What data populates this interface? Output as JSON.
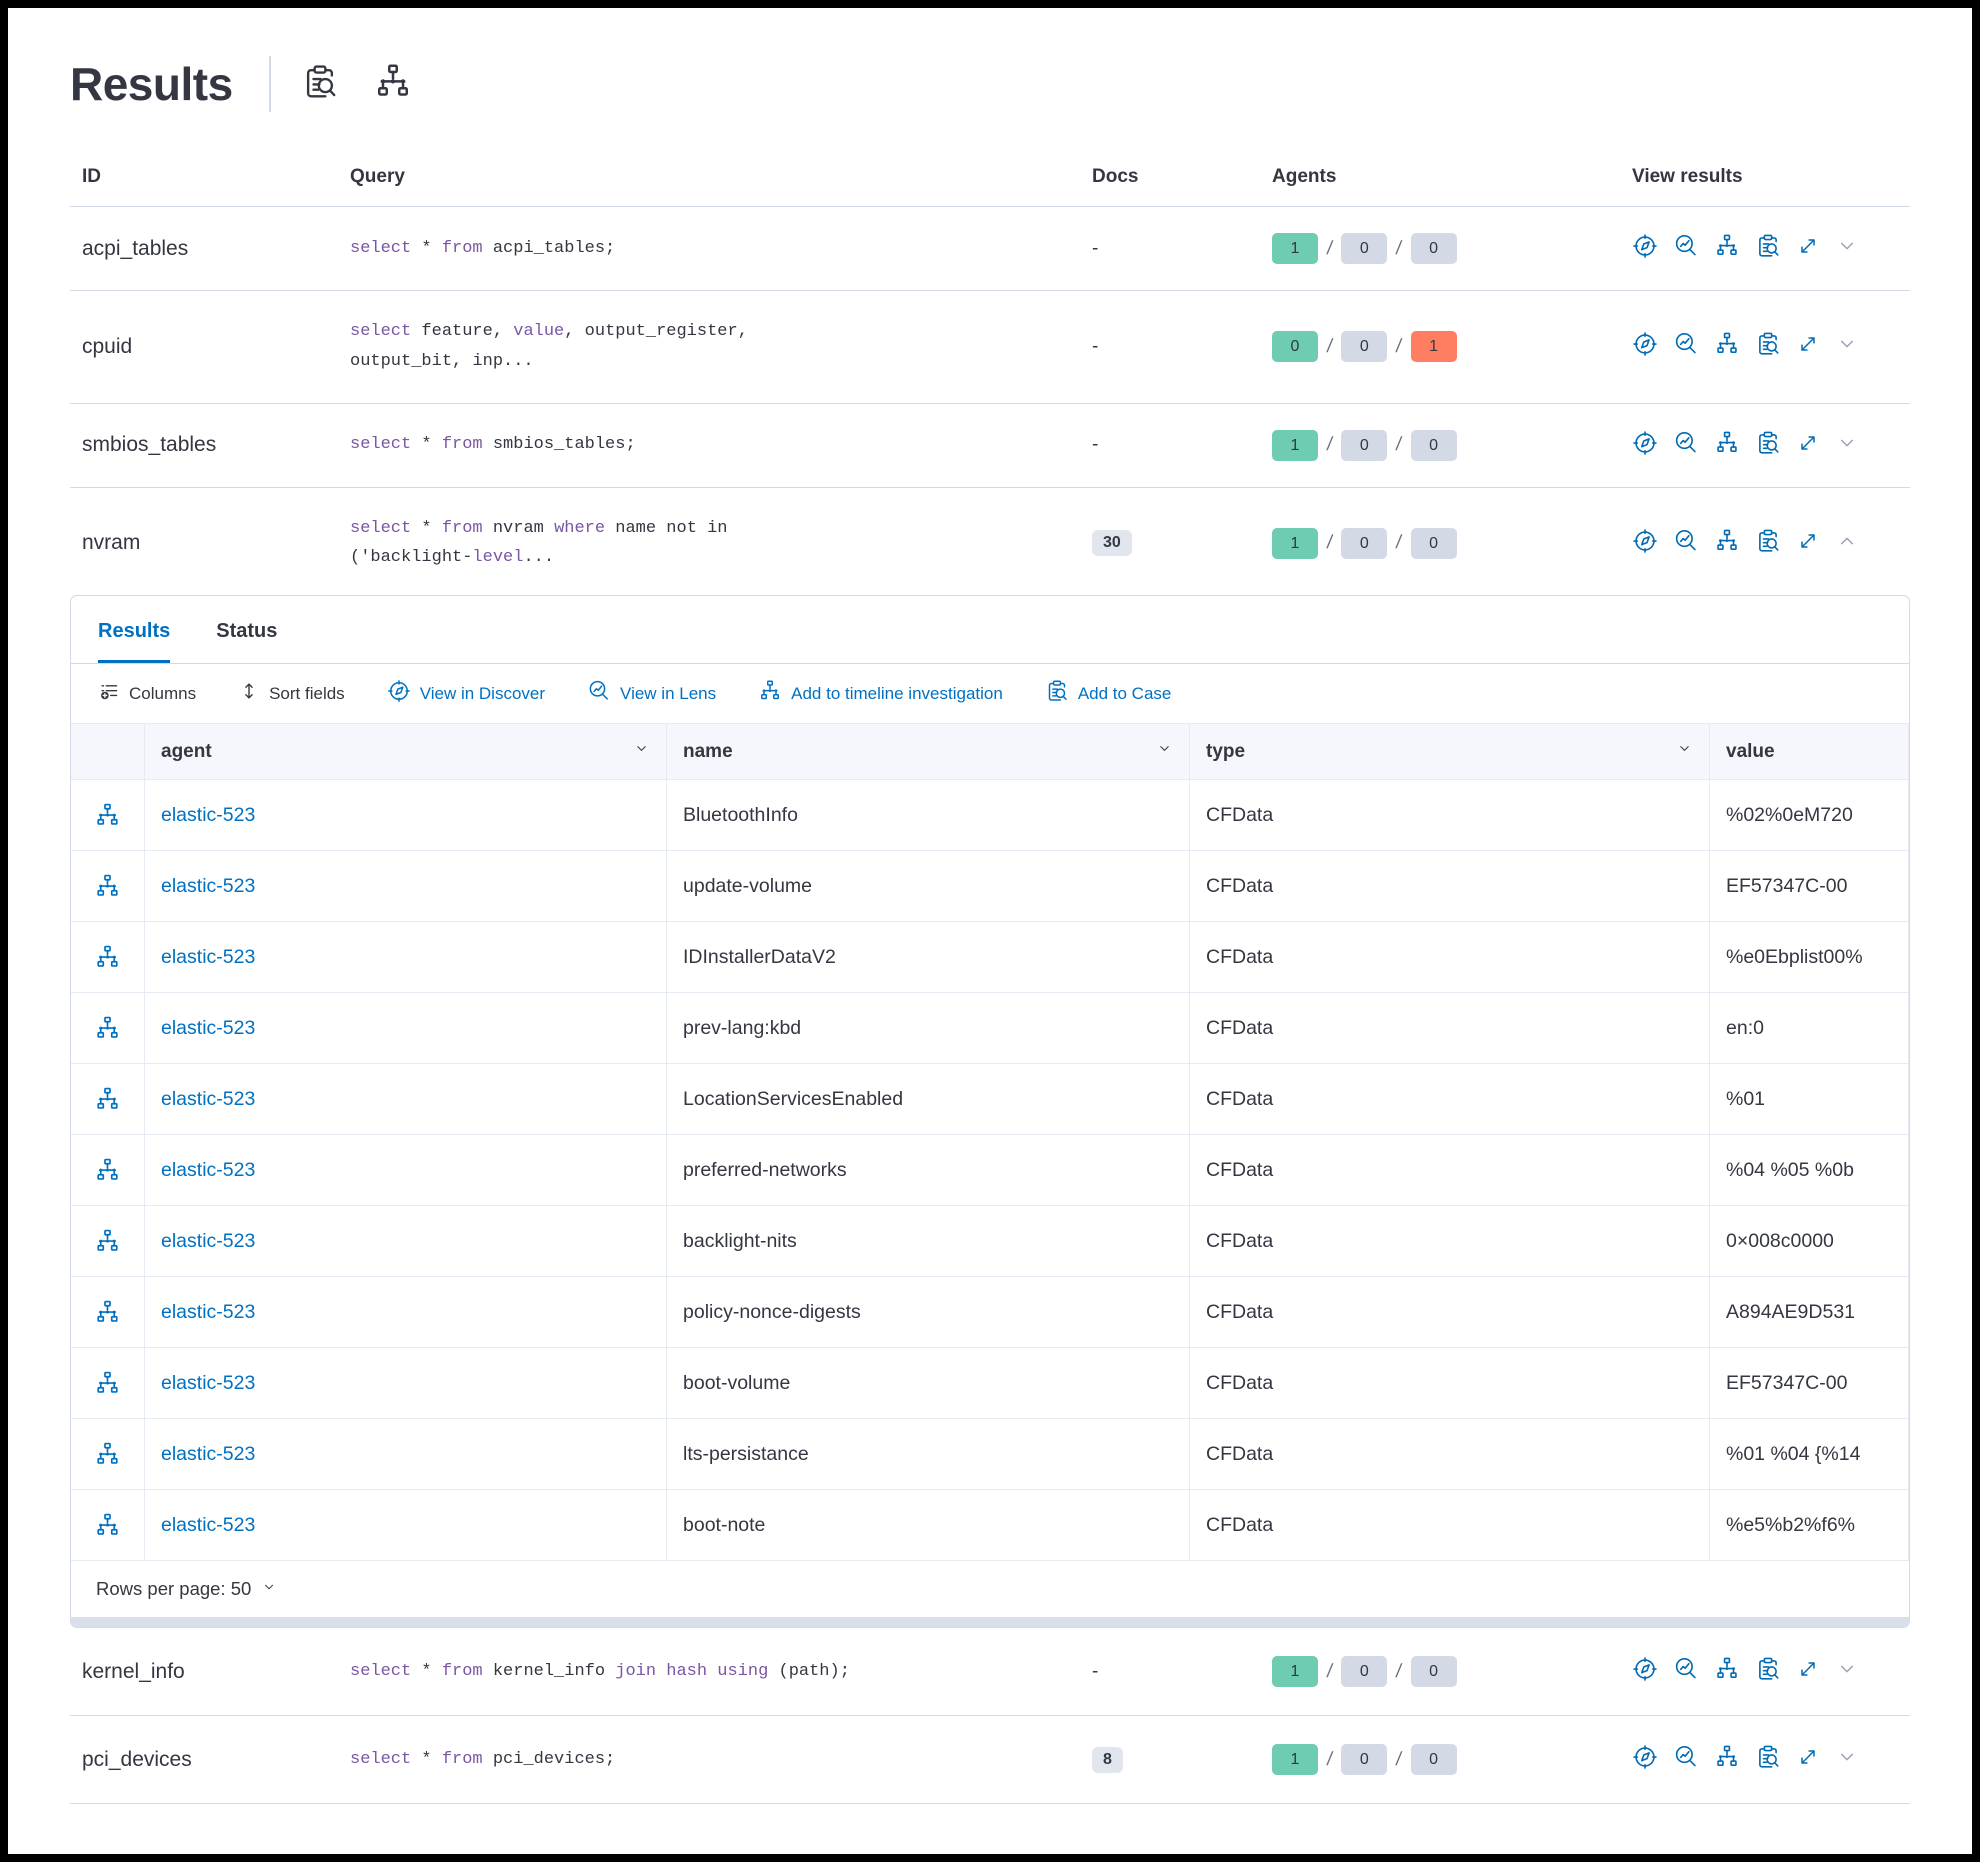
{
  "header": {
    "title": "Results",
    "icons": [
      {
        "name": "inspect-icon"
      },
      {
        "name": "timeline-icon"
      }
    ]
  },
  "colors": {
    "link_blue": "#0071C2",
    "keyword_purple": "#7A56A3",
    "badge_success": "#6DCCB1",
    "badge_default": "#D3DAE6",
    "badge_danger": "#FF7E62"
  },
  "table": {
    "columns": {
      "id": "ID",
      "query": "Query",
      "docs": "Docs",
      "agents": "Agents",
      "view": "View results"
    },
    "insert_panel_after": 3,
    "view_action_icons": [
      "discover-icon",
      "lens-icon",
      "timeline-icon",
      "inspect-icon",
      "expand-icon"
    ],
    "rows": [
      {
        "id": "acpi_tables",
        "query_lines": [
          [
            {
              "t": "select",
              "kw": true
            },
            {
              "t": " * ",
              "kw": false
            },
            {
              "t": "from",
              "kw": true
            },
            {
              "t": " acpi_tables;",
              "kw": false
            }
          ]
        ],
        "docs": {
          "v": "-",
          "badge": false
        },
        "agents": [
          {
            "v": "1",
            "c": "success"
          },
          {
            "v": "0",
            "c": "default"
          },
          {
            "v": "0",
            "c": "default"
          }
        ],
        "chevron": "down",
        "expanded": false
      },
      {
        "id": "cpuid",
        "query_lines": [
          [
            {
              "t": "select",
              "kw": true
            },
            {
              "t": " feature, ",
              "kw": false
            },
            {
              "t": "value",
              "kw": true
            },
            {
              "t": ", output_register,",
              "kw": false
            }
          ],
          [
            {
              "t": "output_bit, inp...",
              "kw": false
            }
          ]
        ],
        "docs": {
          "v": "-",
          "badge": false
        },
        "agents": [
          {
            "v": "0",
            "c": "success"
          },
          {
            "v": "0",
            "c": "default"
          },
          {
            "v": "1",
            "c": "danger"
          }
        ],
        "chevron": "down",
        "expanded": false
      },
      {
        "id": "smbios_tables",
        "query_lines": [
          [
            {
              "t": "select",
              "kw": true
            },
            {
              "t": " * ",
              "kw": false
            },
            {
              "t": "from",
              "kw": true
            },
            {
              "t": " smbios_tables;",
              "kw": false
            }
          ]
        ],
        "docs": {
          "v": "-",
          "badge": false
        },
        "agents": [
          {
            "v": "1",
            "c": "success"
          },
          {
            "v": "0",
            "c": "default"
          },
          {
            "v": "0",
            "c": "default"
          }
        ],
        "chevron": "down",
        "expanded": false
      },
      {
        "id": "nvram",
        "query_lines": [
          [
            {
              "t": "select",
              "kw": true
            },
            {
              "t": " * ",
              "kw": false
            },
            {
              "t": "from",
              "kw": true
            },
            {
              "t": " nvram ",
              "kw": false
            },
            {
              "t": "where",
              "kw": true
            },
            {
              "t": " name not in",
              "kw": false
            }
          ],
          [
            {
              "t": "('backlight-",
              "kw": false
            },
            {
              "t": "level",
              "kw": true
            },
            {
              "t": "...",
              "kw": false
            }
          ]
        ],
        "docs": {
          "v": "30",
          "badge": true
        },
        "agents": [
          {
            "v": "1",
            "c": "success"
          },
          {
            "v": "0",
            "c": "default"
          },
          {
            "v": "0",
            "c": "default"
          }
        ],
        "chevron": "up",
        "expanded": true
      },
      {
        "id": "kernel_info",
        "query_lines": [
          [
            {
              "t": "select",
              "kw": true
            },
            {
              "t": " * ",
              "kw": false
            },
            {
              "t": "from",
              "kw": true
            },
            {
              "t": " kernel_info ",
              "kw": false
            },
            {
              "t": "join hash using",
              "kw": true
            },
            {
              "t": " (path);",
              "kw": false
            }
          ]
        ],
        "docs": {
          "v": "-",
          "badge": false
        },
        "agents": [
          {
            "v": "1",
            "c": "success"
          },
          {
            "v": "0",
            "c": "default"
          },
          {
            "v": "0",
            "c": "default"
          }
        ],
        "chevron": "down",
        "expanded": false
      },
      {
        "id": "pci_devices",
        "query_lines": [
          [
            {
              "t": "select",
              "kw": true
            },
            {
              "t": " * ",
              "kw": false
            },
            {
              "t": "from",
              "kw": true
            },
            {
              "t": " pci_devices;",
              "kw": false
            }
          ]
        ],
        "docs": {
          "v": "8",
          "badge": true
        },
        "agents": [
          {
            "v": "1",
            "c": "success"
          },
          {
            "v": "0",
            "c": "default"
          },
          {
            "v": "0",
            "c": "default"
          }
        ],
        "chevron": "down",
        "expanded": false
      }
    ]
  },
  "panel": {
    "tabs": [
      {
        "label": "Results",
        "active": true
      },
      {
        "label": "Status",
        "active": false
      }
    ],
    "toolbar": {
      "columns": "Columns",
      "sort_fields": "Sort fields",
      "view_in_discover": "View in Discover",
      "view_in_lens": "View in Lens",
      "add_to_timeline": "Add to timeline investigation",
      "add_to_case": "Add to Case"
    },
    "grid": {
      "columns": {
        "agent": "agent",
        "name": "name",
        "type": "type",
        "value": "value"
      },
      "rows": [
        {
          "agent": "elastic-523",
          "name": "BluetoothInfo",
          "type": "CFData",
          "value": "%02%0eM720"
        },
        {
          "agent": "elastic-523",
          "name": "update-volume",
          "type": "CFData",
          "value": "EF57347C-00"
        },
        {
          "agent": "elastic-523",
          "name": "IDInstallerDataV2",
          "type": "CFData",
          "value": "%e0Ebplist00%"
        },
        {
          "agent": "elastic-523",
          "name": "prev-lang:kbd",
          "type": "CFData",
          "value": "en:0"
        },
        {
          "agent": "elastic-523",
          "name": "LocationServicesEnabled",
          "type": "CFData",
          "value": "%01"
        },
        {
          "agent": "elastic-523",
          "name": "preferred-networks",
          "type": "CFData",
          "value": "%04 %05 %0b"
        },
        {
          "agent": "elastic-523",
          "name": "backlight-nits",
          "type": "CFData",
          "value": "0×008c0000"
        },
        {
          "agent": "elastic-523",
          "name": "policy-nonce-digests",
          "type": "CFData",
          "value": "A894AE9D531"
        },
        {
          "agent": "elastic-523",
          "name": "boot-volume",
          "type": "CFData",
          "value": "EF57347C-00"
        },
        {
          "agent": "elastic-523",
          "name": "lts-persistance",
          "type": "CFData",
          "value": "%01 %04 {%14"
        },
        {
          "agent": "elastic-523",
          "name": "boot-note",
          "type": "CFData",
          "value": "%e5%b2%f6%"
        }
      ],
      "footer": {
        "rows_per_page": "Rows per page: 50"
      }
    }
  }
}
